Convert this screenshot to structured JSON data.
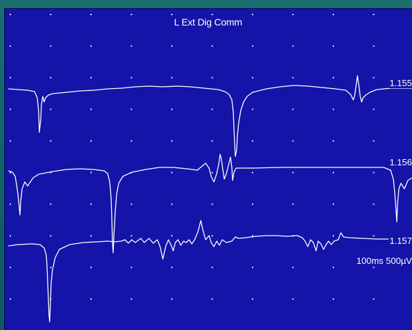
{
  "panel": {
    "title": "L Ext Dig Comm",
    "scale": "100ms 500µV",
    "background": "#1414a8",
    "trace_color": "#ffffff"
  },
  "sweeps": [
    {
      "label": "1.155"
    },
    {
      "label": "1.156"
    },
    {
      "label": "1.157"
    }
  ]
}
